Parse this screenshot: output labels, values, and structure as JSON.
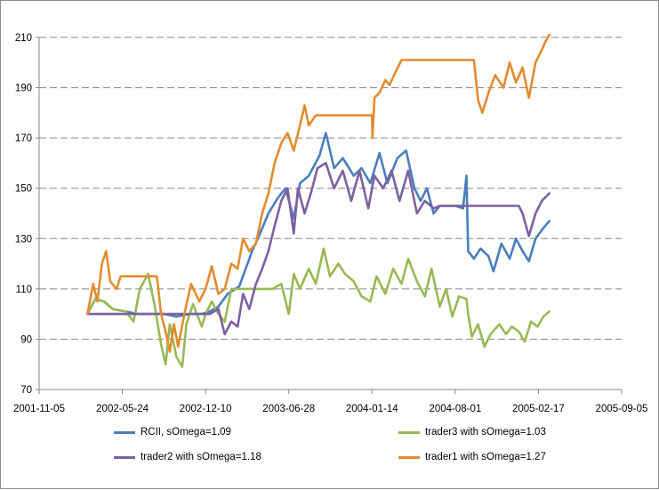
{
  "chart_data": {
    "type": "line",
    "title": "",
    "xlabel": "",
    "ylabel": "",
    "x_ticks": [
      "2001-11-05",
      "2002-05-24",
      "2002-12-10",
      "2003-06-28",
      "2004-01-14",
      "2004-08-01",
      "2005-02-17",
      "2005-09-05"
    ],
    "xlim": [
      "2001-11-05",
      "2005-09-05"
    ],
    "y_ticks": [
      70,
      90,
      110,
      130,
      150,
      170,
      190,
      210
    ],
    "ylim": [
      70,
      210
    ],
    "grid": "horizontal dashed",
    "legend_position": "bottom",
    "series": [
      {
        "name": "RCII, sOmega=1.09",
        "color": "#4a7ebb",
        "points": [
          [
            "2002-03-01",
            100
          ],
          [
            "2002-03-20",
            106
          ],
          [
            "2002-04-10",
            105
          ],
          [
            "2002-05-01",
            102
          ],
          [
            "2002-06-01",
            101
          ],
          [
            "2002-07-01",
            100
          ],
          [
            "2002-08-01",
            100
          ],
          [
            "2002-09-01",
            100
          ],
          [
            "2002-10-01",
            99
          ],
          [
            "2002-11-01",
            100
          ],
          [
            "2002-12-01",
            100
          ],
          [
            "2002-12-20",
            101
          ],
          [
            "2003-01-10",
            103
          ],
          [
            "2003-02-01",
            108
          ],
          [
            "2003-03-01",
            111
          ],
          [
            "2003-04-01",
            125
          ],
          [
            "2003-04-20",
            132
          ],
          [
            "2003-05-10",
            140
          ],
          [
            "2003-06-01",
            146
          ],
          [
            "2003-06-20",
            150
          ],
          [
            "2003-07-10",
            138
          ],
          [
            "2003-07-25",
            152
          ],
          [
            "2003-08-15",
            155
          ],
          [
            "2003-09-10",
            163
          ],
          [
            "2003-09-25",
            172
          ],
          [
            "2003-10-15",
            158
          ],
          [
            "2003-11-05",
            162
          ],
          [
            "2003-12-01",
            155
          ],
          [
            "2003-12-20",
            158
          ],
          [
            "2004-01-10",
            152
          ],
          [
            "2004-02-01",
            164
          ],
          [
            "2004-02-20",
            152
          ],
          [
            "2004-03-15",
            162
          ],
          [
            "2004-04-05",
            165
          ],
          [
            "2004-04-25",
            150
          ],
          [
            "2004-05-10",
            145
          ],
          [
            "2004-05-25",
            150
          ],
          [
            "2004-06-10",
            140
          ],
          [
            "2004-06-25",
            143
          ],
          [
            "2004-07-15",
            143
          ],
          [
            "2004-08-01",
            143
          ],
          [
            "2004-08-20",
            142
          ],
          [
            "2004-08-28",
            155
          ],
          [
            "2004-09-01",
            125
          ],
          [
            "2004-09-15",
            122
          ],
          [
            "2004-10-01",
            126
          ],
          [
            "2004-10-20",
            123
          ],
          [
            "2004-11-01",
            117
          ],
          [
            "2004-11-20",
            128
          ],
          [
            "2004-12-10",
            122
          ],
          [
            "2004-12-25",
            130
          ],
          [
            "2005-01-10",
            125
          ],
          [
            "2005-01-25",
            121
          ],
          [
            "2005-02-10",
            130
          ],
          [
            "2005-02-28",
            134
          ],
          [
            "2005-03-15",
            137
          ]
        ]
      },
      {
        "name": "trader3 with sOmega=1.03",
        "color": "#98b954",
        "points": [
          [
            "2002-03-01",
            100
          ],
          [
            "2002-03-20",
            106
          ],
          [
            "2002-04-10",
            105
          ],
          [
            "2002-05-01",
            102
          ],
          [
            "2002-06-01",
            101
          ],
          [
            "2002-06-20",
            97
          ],
          [
            "2002-07-05",
            110
          ],
          [
            "2002-07-25",
            116
          ],
          [
            "2002-08-10",
            103
          ],
          [
            "2002-08-25",
            88
          ],
          [
            "2002-09-05",
            80
          ],
          [
            "2002-09-15",
            96
          ],
          [
            "2002-10-01",
            83
          ],
          [
            "2002-10-15",
            79
          ],
          [
            "2002-10-25",
            96
          ],
          [
            "2002-11-10",
            104
          ],
          [
            "2002-12-01",
            95
          ],
          [
            "2002-12-10",
            100
          ],
          [
            "2002-12-25",
            105
          ],
          [
            "2003-01-10",
            100
          ],
          [
            "2003-01-25",
            97
          ],
          [
            "2003-02-10",
            110
          ],
          [
            "2003-03-01",
            110
          ],
          [
            "2003-04-01",
            110
          ],
          [
            "2003-05-01",
            110
          ],
          [
            "2003-05-20",
            110
          ],
          [
            "2003-06-10",
            112
          ],
          [
            "2003-06-28",
            100
          ],
          [
            "2003-07-10",
            116
          ],
          [
            "2003-07-25",
            110
          ],
          [
            "2003-08-15",
            118
          ],
          [
            "2003-09-01",
            112
          ],
          [
            "2003-09-20",
            126
          ],
          [
            "2003-10-05",
            115
          ],
          [
            "2003-10-25",
            120
          ],
          [
            "2003-11-10",
            116
          ],
          [
            "2003-12-01",
            113
          ],
          [
            "2003-12-20",
            107
          ],
          [
            "2004-01-10",
            105
          ],
          [
            "2004-01-25",
            115
          ],
          [
            "2004-02-15",
            108
          ],
          [
            "2004-03-05",
            118
          ],
          [
            "2004-03-25",
            112
          ],
          [
            "2004-04-10",
            122
          ],
          [
            "2004-05-01",
            113
          ],
          [
            "2004-05-20",
            107
          ],
          [
            "2004-06-05",
            118
          ],
          [
            "2004-06-25",
            103
          ],
          [
            "2004-07-10",
            110
          ],
          [
            "2004-07-25",
            99
          ],
          [
            "2004-08-10",
            107
          ],
          [
            "2004-08-28",
            106
          ],
          [
            "2004-09-01",
            100
          ],
          [
            "2004-09-10",
            91
          ],
          [
            "2004-09-25",
            96
          ],
          [
            "2004-10-10",
            87
          ],
          [
            "2004-10-25",
            92
          ],
          [
            "2004-11-15",
            96
          ],
          [
            "2004-12-01",
            92
          ],
          [
            "2004-12-15",
            95
          ],
          [
            "2005-01-01",
            93
          ],
          [
            "2005-01-15",
            89
          ],
          [
            "2005-01-30",
            97
          ],
          [
            "2005-02-15",
            95
          ],
          [
            "2005-03-01",
            99
          ],
          [
            "2005-03-15",
            101
          ]
        ]
      },
      {
        "name": "trader2 with sOmega=1.18",
        "color": "#7d60a0",
        "points": [
          [
            "2002-03-01",
            100
          ],
          [
            "2002-04-01",
            100
          ],
          [
            "2002-05-01",
            100
          ],
          [
            "2002-06-01",
            100
          ],
          [
            "2002-07-01",
            100
          ],
          [
            "2002-08-01",
            100
          ],
          [
            "2002-09-01",
            100
          ],
          [
            "2002-10-01",
            100
          ],
          [
            "2002-11-01",
            100
          ],
          [
            "2002-12-01",
            100
          ],
          [
            "2002-12-20",
            100
          ],
          [
            "2003-01-10",
            102
          ],
          [
            "2003-01-25",
            92
          ],
          [
            "2003-02-10",
            97
          ],
          [
            "2003-02-25",
            95
          ],
          [
            "2003-03-10",
            108
          ],
          [
            "2003-03-25",
            102
          ],
          [
            "2003-04-10",
            112
          ],
          [
            "2003-04-25",
            118
          ],
          [
            "2003-05-10",
            125
          ],
          [
            "2003-05-25",
            135
          ],
          [
            "2003-06-10",
            145
          ],
          [
            "2003-06-25",
            150
          ],
          [
            "2003-07-10",
            132
          ],
          [
            "2003-07-20",
            150
          ],
          [
            "2003-08-05",
            140
          ],
          [
            "2003-08-20",
            148
          ],
          [
            "2003-09-05",
            158
          ],
          [
            "2003-09-25",
            160
          ],
          [
            "2003-10-15",
            150
          ],
          [
            "2003-11-05",
            157
          ],
          [
            "2003-11-25",
            145
          ],
          [
            "2003-12-15",
            157
          ],
          [
            "2004-01-05",
            142
          ],
          [
            "2004-01-20",
            155
          ],
          [
            "2004-02-10",
            150
          ],
          [
            "2004-03-01",
            157
          ],
          [
            "2004-03-20",
            145
          ],
          [
            "2004-04-10",
            157
          ],
          [
            "2004-05-01",
            140
          ],
          [
            "2004-05-20",
            145
          ],
          [
            "2004-06-10",
            142
          ],
          [
            "2004-06-25",
            143
          ],
          [
            "2004-08-01",
            143
          ],
          [
            "2004-09-01",
            143
          ],
          [
            "2004-10-01",
            143
          ],
          [
            "2004-11-01",
            143
          ],
          [
            "2004-12-01",
            143
          ],
          [
            "2005-01-01",
            143
          ],
          [
            "2005-01-10",
            140
          ],
          [
            "2005-01-25",
            131
          ],
          [
            "2005-02-10",
            140
          ],
          [
            "2005-02-25",
            145
          ],
          [
            "2005-03-15",
            148
          ]
        ]
      },
      {
        "name": "trader1 with sOmega=1.27",
        "color": "#e38b2f",
        "points": [
          [
            "2002-03-01",
            100
          ],
          [
            "2002-03-15",
            112
          ],
          [
            "2002-03-25",
            105
          ],
          [
            "2002-04-05",
            120
          ],
          [
            "2002-04-15",
            125
          ],
          [
            "2002-04-25",
            113
          ],
          [
            "2002-05-10",
            110
          ],
          [
            "2002-05-20",
            115
          ],
          [
            "2002-06-01",
            115
          ],
          [
            "2002-07-01",
            115
          ],
          [
            "2002-08-01",
            115
          ],
          [
            "2002-08-15",
            115
          ],
          [
            "2002-08-25",
            100
          ],
          [
            "2002-09-05",
            93
          ],
          [
            "2002-09-15",
            85
          ],
          [
            "2002-09-25",
            96
          ],
          [
            "2002-10-05",
            87
          ],
          [
            "2002-10-20",
            100
          ],
          [
            "2002-11-05",
            112
          ],
          [
            "2002-11-25",
            105
          ],
          [
            "2002-12-10",
            110
          ],
          [
            "2002-12-25",
            119
          ],
          [
            "2003-01-10",
            108
          ],
          [
            "2003-01-25",
            110
          ],
          [
            "2003-02-10",
            120
          ],
          [
            "2003-02-25",
            118
          ],
          [
            "2003-03-10",
            130
          ],
          [
            "2003-03-25",
            125
          ],
          [
            "2003-04-10",
            128
          ],
          [
            "2003-04-25",
            140
          ],
          [
            "2003-05-10",
            148
          ],
          [
            "2003-05-25",
            160
          ],
          [
            "2003-06-10",
            168
          ],
          [
            "2003-06-25",
            172
          ],
          [
            "2003-07-10",
            165
          ],
          [
            "2003-07-25",
            175
          ],
          [
            "2003-08-05",
            183
          ],
          [
            "2003-08-15",
            175
          ],
          [
            "2003-09-01",
            179
          ],
          [
            "2003-10-01",
            179
          ],
          [
            "2003-11-01",
            179
          ],
          [
            "2003-12-01",
            179
          ],
          [
            "2004-01-01",
            179
          ],
          [
            "2004-01-14",
            179
          ],
          [
            "2004-01-15",
            170
          ],
          [
            "2004-01-20",
            186
          ],
          [
            "2004-02-01",
            188
          ],
          [
            "2004-02-15",
            193
          ],
          [
            "2004-02-25",
            191
          ],
          [
            "2004-03-10",
            196
          ],
          [
            "2004-03-25",
            201
          ],
          [
            "2004-04-15",
            201
          ],
          [
            "2004-05-15",
            201
          ],
          [
            "2004-06-15",
            201
          ],
          [
            "2004-07-15",
            201
          ],
          [
            "2004-08-15",
            201
          ],
          [
            "2004-09-15",
            201
          ],
          [
            "2004-09-25",
            185
          ],
          [
            "2004-10-05",
            180
          ],
          [
            "2004-10-20",
            188
          ],
          [
            "2004-11-05",
            195
          ],
          [
            "2004-11-25",
            190
          ],
          [
            "2004-12-10",
            200
          ],
          [
            "2004-12-25",
            192
          ],
          [
            "2005-01-10",
            198
          ],
          [
            "2005-01-25",
            186
          ],
          [
            "2005-02-10",
            200
          ],
          [
            "2005-02-25",
            205
          ],
          [
            "2005-03-05",
            208
          ],
          [
            "2005-03-15",
            211
          ]
        ]
      }
    ]
  }
}
